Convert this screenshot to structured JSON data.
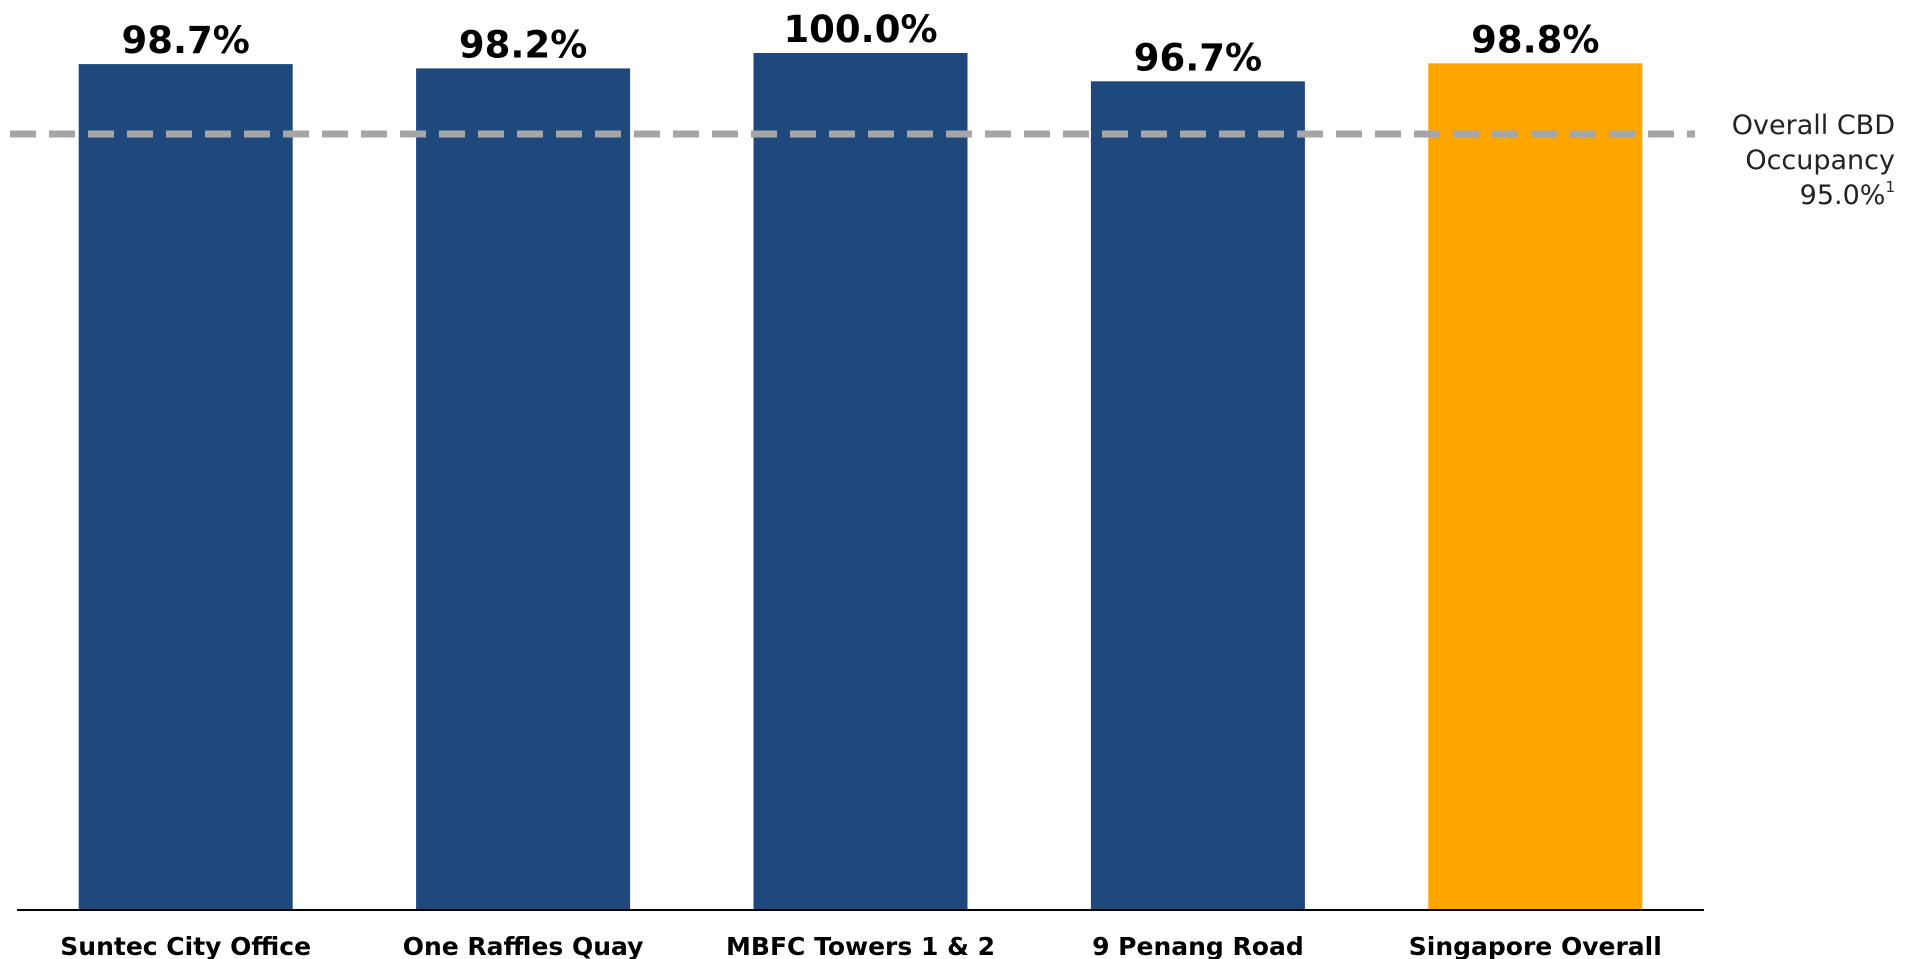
{
  "chart_data": {
    "type": "bar",
    "title": "",
    "xlabel": "",
    "ylabel": "",
    "categories": [
      "Suntec City Office",
      "One Raffles Quay",
      "MBFC Towers 1 & 2",
      "9 Penang Road",
      "Singapore Overall"
    ],
    "values": [
      98.7,
      98.2,
      100.0,
      96.7,
      98.8
    ],
    "value_labels": [
      "98.7%",
      "98.2%",
      "100.0%",
      "96.7%",
      "98.8%"
    ],
    "bar_colors": [
      "#1F497D",
      "#1F497D",
      "#1F497D",
      "#1F497D",
      "#FFA500"
    ],
    "reference_line": {
      "value": 95.0,
      "style": "dashed",
      "color": "#A6A6A6",
      "label_lines": [
        "Overall CBD",
        "Occupancy"
      ],
      "value_label": "95.0%",
      "footnote_marker": "1"
    },
    "ylim": [
      0,
      100
    ],
    "grid": false,
    "legend": "none",
    "y_axis_visible": false
  }
}
